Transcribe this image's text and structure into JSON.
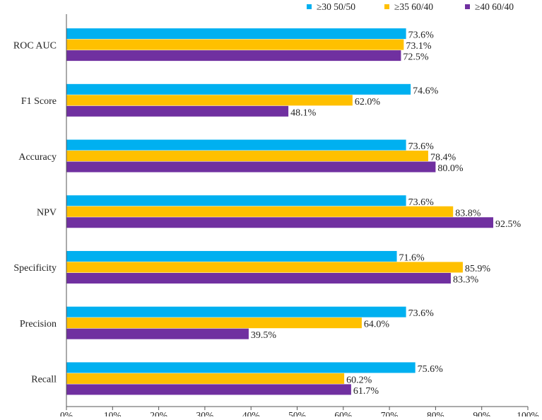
{
  "chart_data": {
    "type": "bar",
    "orientation": "horizontal",
    "title": "",
    "xlabel": "",
    "ylabel": "",
    "xlim": [
      0,
      100
    ],
    "x_ticks": [
      "0%",
      "10%",
      "20%",
      "30%",
      "40%",
      "50%",
      "60%",
      "70%",
      "80%",
      "90%",
      "100%"
    ],
    "grid": false,
    "legend_position": "top-right",
    "categories": [
      "ROC AUC",
      "F1 Score",
      "Accuracy",
      "NPV",
      "Specificity",
      "Precision",
      "Recall"
    ],
    "series": [
      {
        "name": "≥30 50/50",
        "color": "#00B0F0",
        "values": [
          73.6,
          74.6,
          73.6,
          73.6,
          71.6,
          73.6,
          75.6
        ]
      },
      {
        "name": "≥35 60/40",
        "color": "#FFC000",
        "values": [
          73.1,
          62.0,
          78.4,
          83.8,
          85.9,
          64.0,
          60.2
        ]
      },
      {
        "name": "≥40 60/40",
        "color": "#7030A0",
        "values": [
          72.5,
          48.1,
          80.0,
          92.5,
          83.3,
          39.5,
          61.7
        ]
      }
    ]
  }
}
